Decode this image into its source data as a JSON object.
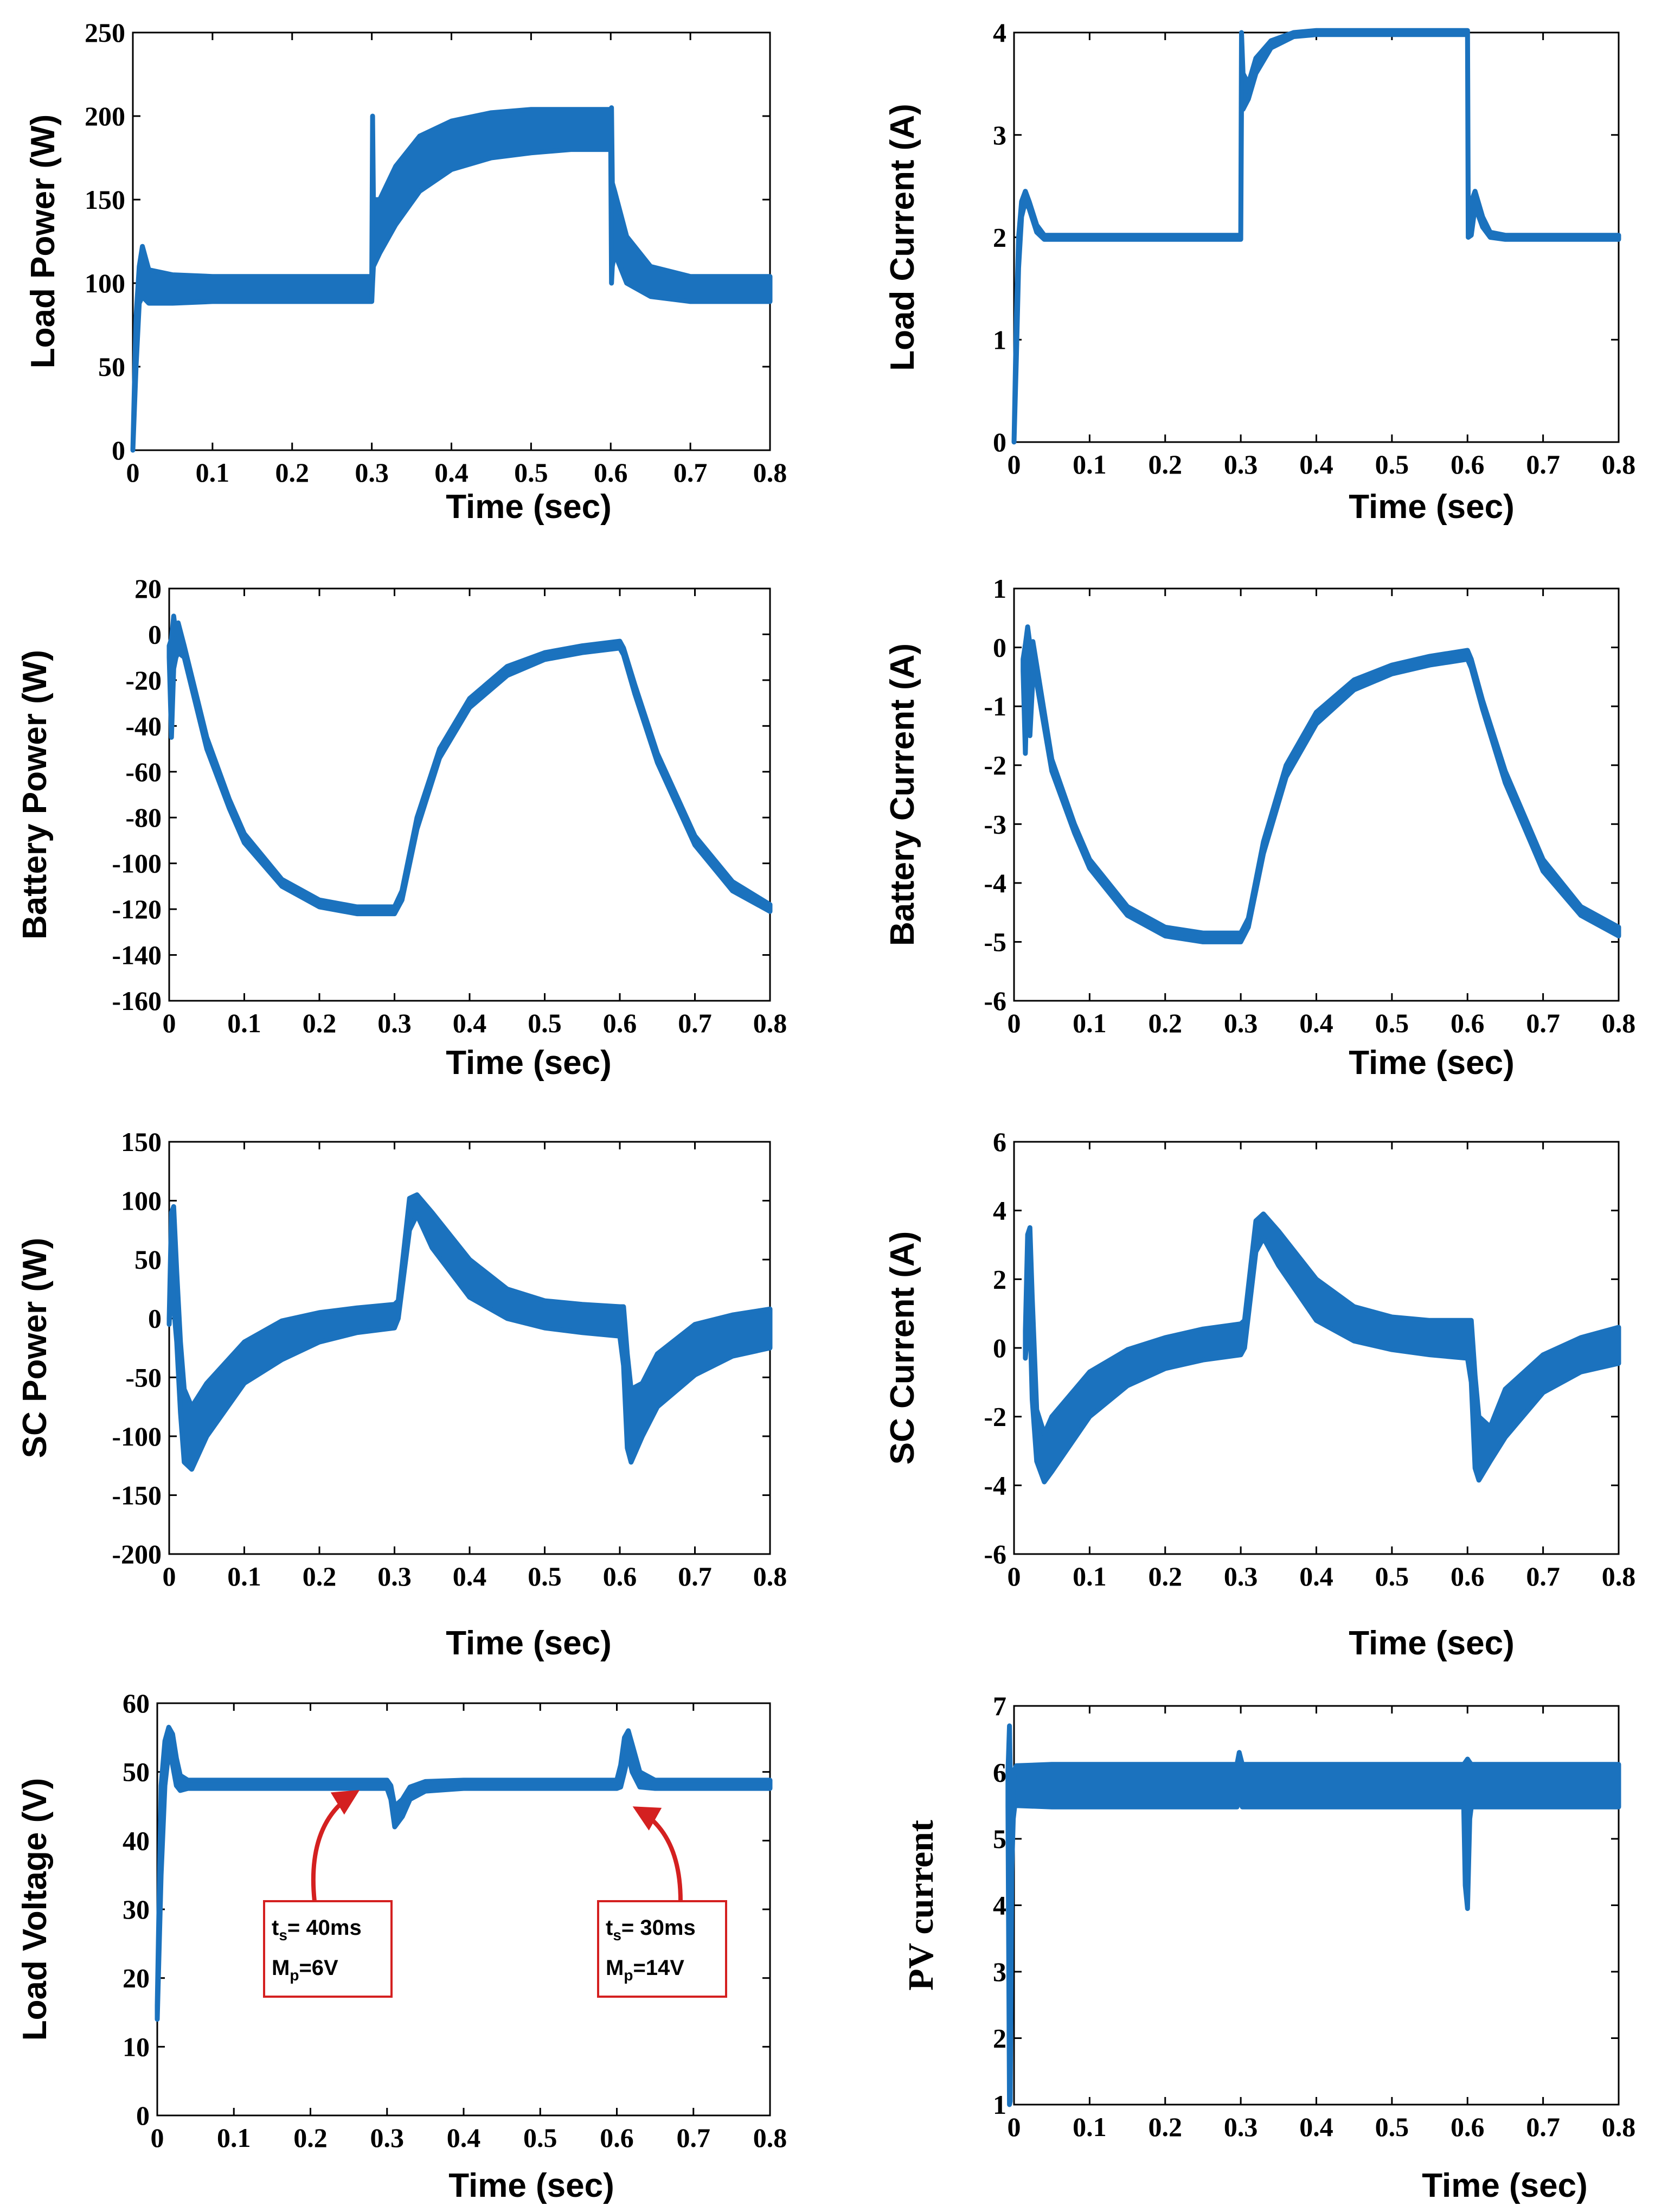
{
  "figure": {
    "series_color": "#1b72be",
    "annotation_color": "#d42020"
  },
  "chart_data": [
    {
      "id": "load-power",
      "type": "line",
      "title": "",
      "xlabel": "Time (sec)",
      "ylabel": "Load Power (W)",
      "xlim": [
        0,
        0.8
      ],
      "ylim": [
        0,
        250
      ],
      "xticks": [
        "0",
        "0.1",
        "0.2",
        "0.3",
        "0.4",
        "0.5",
        "0.6",
        "0.7",
        "0.8"
      ],
      "yticks": [
        "0",
        "50",
        "100",
        "150",
        "200",
        "250"
      ],
      "series": [
        {
          "name": "Load Power",
          "x": [
            0,
            0.004,
            0.008,
            0.012,
            0.02,
            0.05,
            0.1,
            0.2,
            0.3,
            0.301,
            0.302,
            0.31,
            0.33,
            0.36,
            0.4,
            0.45,
            0.5,
            0.55,
            0.6,
            0.601,
            0.602,
            0.605,
            0.62,
            0.65,
            0.7,
            0.75,
            0.8
          ],
          "upper": [
            0,
            80,
            110,
            122,
            108,
            105,
            104,
            104,
            104,
            200,
            150,
            150,
            170,
            188,
            197,
            202,
            204,
            204,
            204,
            205,
            160,
            155,
            128,
            110,
            104,
            104,
            104
          ],
          "lower": [
            0,
            50,
            88,
            92,
            88,
            88,
            89,
            89,
            89,
            100,
            110,
            118,
            135,
            155,
            168,
            175,
            178,
            180,
            180,
            100,
            110,
            118,
            100,
            92,
            89,
            89,
            89
          ]
        }
      ]
    },
    {
      "id": "load-current",
      "type": "line",
      "title": "",
      "xlabel": "Time (sec)",
      "ylabel": "Load Current (A)",
      "xlim": [
        0,
        0.8
      ],
      "ylim": [
        0,
        4
      ],
      "xticks": [
        "0",
        "0.1",
        "0.2",
        "0.3",
        "0.4",
        "0.5",
        "0.6",
        "0.7",
        "0.8"
      ],
      "yticks": [
        "0",
        "1",
        "2",
        "3",
        "4"
      ],
      "series": [
        {
          "name": "Load Current",
          "x": [
            0,
            0.003,
            0.006,
            0.01,
            0.015,
            0.02,
            0.03,
            0.04,
            0.05,
            0.1,
            0.2,
            0.3,
            0.301,
            0.303,
            0.31,
            0.32,
            0.34,
            0.37,
            0.4,
            0.5,
            0.6,
            0.601,
            0.605,
            0.61,
            0.62,
            0.63,
            0.65,
            0.7,
            0.8
          ],
          "upper": [
            0,
            1.2,
            2.0,
            2.35,
            2.45,
            2.35,
            2.12,
            2.02,
            2.02,
            2.02,
            2.02,
            2.02,
            4.0,
            3.6,
            3.5,
            3.75,
            3.92,
            4.0,
            4.02,
            4.02,
            4.02,
            2.3,
            2.35,
            2.45,
            2.2,
            2.05,
            2.02,
            2.02,
            2.02
          ],
          "lower": [
            0,
            0.8,
            1.7,
            2.2,
            2.35,
            2.28,
            2.05,
            1.98,
            1.98,
            1.98,
            1.98,
            1.98,
            3.3,
            3.25,
            3.35,
            3.6,
            3.85,
            3.96,
            3.98,
            3.98,
            3.98,
            2.0,
            2.02,
            2.3,
            2.1,
            2.0,
            1.98,
            1.98,
            1.98
          ]
        }
      ]
    },
    {
      "id": "battery-power",
      "type": "line",
      "title": "",
      "xlabel": "Time (sec)",
      "ylabel": "Battery Power (W)",
      "xlim": [
        0,
        0.8
      ],
      "ylim": [
        -160,
        20
      ],
      "xticks": [
        "0",
        "0.1",
        "0.2",
        "0.3",
        "0.4",
        "0.5",
        "0.6",
        "0.7",
        "0.8"
      ],
      "yticks": [
        "-160",
        "-140",
        "-120",
        "-100",
        "-80",
        "-60",
        "-40",
        "-20",
        "0",
        "20"
      ],
      "series": [
        {
          "name": "Battery Power",
          "x": [
            0,
            0.003,
            0.006,
            0.009,
            0.012,
            0.02,
            0.05,
            0.08,
            0.1,
            0.15,
            0.2,
            0.25,
            0.3,
            0.31,
            0.33,
            0.36,
            0.4,
            0.45,
            0.5,
            0.55,
            0.6,
            0.605,
            0.62,
            0.65,
            0.7,
            0.75,
            0.8
          ],
          "upper": [
            -5,
            -2,
            8,
            0,
            5,
            -5,
            -45,
            -72,
            -87,
            -107,
            -116,
            -119,
            -119,
            -112,
            -80,
            -50,
            -28,
            -14,
            -8,
            -5,
            -3,
            -6,
            -22,
            -52,
            -88,
            -108,
            -118
          ],
          "lower": [
            -10,
            -45,
            -15,
            -10,
            -8,
            -10,
            -50,
            -76,
            -91,
            -110,
            -119,
            -122,
            -122,
            -116,
            -85,
            -54,
            -32,
            -18,
            -11,
            -8,
            -6,
            -9,
            -26,
            -56,
            -92,
            -112,
            -121
          ]
        }
      ]
    },
    {
      "id": "battery-current",
      "type": "line",
      "title": "",
      "xlabel": "Time (sec)",
      "ylabel": "Battery Current (A)",
      "xlim": [
        0,
        0.8
      ],
      "ylim": [
        -6,
        1
      ],
      "xticks": [
        "0",
        "0.1",
        "0.2",
        "0.3",
        "0.4",
        "0.5",
        "0.6",
        "0.7",
        "0.8"
      ],
      "yticks": [
        "-6",
        "-5",
        "-4",
        "-3",
        "-2",
        "-1",
        "0",
        "1"
      ],
      "series": [
        {
          "name": "Battery Current",
          "x": [
            0.012,
            0.015,
            0.018,
            0.021,
            0.025,
            0.03,
            0.05,
            0.08,
            0.1,
            0.15,
            0.2,
            0.25,
            0.3,
            0.31,
            0.33,
            0.36,
            0.4,
            0.45,
            0.5,
            0.55,
            0.6,
            0.605,
            0.62,
            0.65,
            0.7,
            0.75,
            0.8
          ],
          "upper": [
            -0.2,
            0.05,
            0.35,
            0.05,
            0.1,
            -0.3,
            -1.9,
            -3.0,
            -3.6,
            -4.4,
            -4.75,
            -4.85,
            -4.85,
            -4.6,
            -3.3,
            -2.0,
            -1.1,
            -0.55,
            -0.3,
            -0.15,
            -0.05,
            -0.2,
            -0.9,
            -2.1,
            -3.6,
            -4.4,
            -4.75
          ],
          "lower": [
            -0.4,
            -1.8,
            -0.3,
            -1.5,
            -0.5,
            -0.6,
            -2.1,
            -3.15,
            -3.75,
            -4.55,
            -4.9,
            -5.0,
            -5.0,
            -4.75,
            -3.5,
            -2.2,
            -1.3,
            -0.72,
            -0.45,
            -0.3,
            -0.2,
            -0.35,
            -1.05,
            -2.3,
            -3.8,
            -4.55,
            -4.9
          ]
        }
      ]
    },
    {
      "id": "sc-power",
      "type": "line",
      "title": "",
      "xlabel": "Time (sec)",
      "ylabel": "SC Power (W)",
      "xlim": [
        0,
        0.8
      ],
      "ylim": [
        -200,
        150
      ],
      "xticks": [
        "0",
        "0.1",
        "0.2",
        "0.3",
        "0.4",
        "0.5",
        "0.6",
        "0.7",
        "0.8"
      ],
      "yticks": [
        "-200",
        "-150",
        "-100",
        "-50",
        "0",
        "50",
        "100",
        "150"
      ],
      "series": [
        {
          "name": "SC Power",
          "x": [
            0,
            0.003,
            0.006,
            0.01,
            0.015,
            0.02,
            0.03,
            0.05,
            0.1,
            0.15,
            0.2,
            0.25,
            0.3,
            0.305,
            0.32,
            0.33,
            0.35,
            0.4,
            0.45,
            0.5,
            0.55,
            0.6,
            0.605,
            0.61,
            0.615,
            0.63,
            0.65,
            0.7,
            0.75,
            0.8
          ],
          "upper": [
            0,
            90,
            95,
            40,
            -20,
            -60,
            -75,
            -55,
            -20,
            -2,
            5,
            9,
            12,
            15,
            102,
            105,
            90,
            50,
            25,
            15,
            12,
            10,
            10,
            -30,
            -60,
            -55,
            -30,
            -5,
            3,
            8
          ],
          "lower": [
            -5,
            40,
            10,
            -20,
            -80,
            -122,
            -128,
            -100,
            -55,
            -35,
            -20,
            -12,
            -8,
            0,
            75,
            88,
            60,
            18,
            0,
            -8,
            -12,
            -15,
            -40,
            -110,
            -122,
            -100,
            -75,
            -48,
            -32,
            -25
          ]
        }
      ]
    },
    {
      "id": "sc-current",
      "type": "line",
      "title": "",
      "xlabel": "Time (sec)",
      "ylabel": "SC Current (A)",
      "xlim": [
        0,
        0.8
      ],
      "ylim": [
        -6,
        6
      ],
      "xticks": [
        "0",
        "0.1",
        "0.2",
        "0.3",
        "0.4",
        "0.5",
        "0.6",
        "0.7",
        "0.8"
      ],
      "yticks": [
        "-6",
        "-4",
        "-2",
        "0",
        "2",
        "4",
        "6"
      ],
      "series": [
        {
          "name": "SC Current",
          "x": [
            0.015,
            0.018,
            0.021,
            0.024,
            0.03,
            0.04,
            0.05,
            0.1,
            0.15,
            0.2,
            0.25,
            0.3,
            0.305,
            0.32,
            0.33,
            0.35,
            0.4,
            0.45,
            0.5,
            0.55,
            0.6,
            0.605,
            0.61,
            0.615,
            0.63,
            0.65,
            0.7,
            0.75,
            0.8
          ],
          "upper": [
            0.5,
            3.3,
            3.5,
            1.5,
            -1.8,
            -2.5,
            -2.0,
            -0.7,
            -0.05,
            0.3,
            0.55,
            0.7,
            0.8,
            3.7,
            3.9,
            3.4,
            2.0,
            1.2,
            0.9,
            0.8,
            0.8,
            0.8,
            -0.8,
            -2.0,
            -2.3,
            -1.2,
            -0.2,
            0.3,
            0.6
          ],
          "lower": [
            -0.3,
            0.5,
            1.0,
            -1.5,
            -3.3,
            -3.9,
            -3.6,
            -2.0,
            -1.1,
            -0.6,
            -0.35,
            -0.2,
            0.0,
            2.8,
            3.2,
            2.4,
            0.8,
            0.2,
            -0.05,
            -0.2,
            -0.3,
            -1.0,
            -3.5,
            -3.85,
            -3.3,
            -2.6,
            -1.3,
            -0.7,
            -0.45
          ]
        }
      ]
    },
    {
      "id": "load-voltage",
      "type": "line",
      "title": "",
      "xlabel": "Time (sec)",
      "ylabel": "Load Voltage (V)",
      "xlim": [
        0,
        0.8
      ],
      "ylim": [
        0,
        60
      ],
      "xticks": [
        "0",
        "0.1",
        "0.2",
        "0.3",
        "0.4",
        "0.5",
        "0.6",
        "0.7",
        "0.8"
      ],
      "yticks": [
        "0",
        "10",
        "20",
        "30",
        "40",
        "50",
        "60"
      ],
      "series": [
        {
          "name": "Load Voltage",
          "x": [
            0,
            0.005,
            0.01,
            0.015,
            0.02,
            0.025,
            0.03,
            0.04,
            0.1,
            0.2,
            0.3,
            0.305,
            0.31,
            0.32,
            0.33,
            0.35,
            0.4,
            0.5,
            0.6,
            0.605,
            0.61,
            0.615,
            0.62,
            0.63,
            0.65,
            0.7,
            0.8
          ],
          "upper": [
            16,
            48,
            54.5,
            56.5,
            55.5,
            52,
            49.5,
            48.8,
            48.8,
            48.8,
            48.8,
            48,
            45,
            46,
            47.8,
            48.6,
            48.8,
            48.8,
            48.8,
            51,
            55,
            56,
            54,
            50,
            48.8,
            48.8,
            48.8
          ],
          "lower": [
            14,
            35,
            48,
            53,
            51,
            48,
            47.3,
            47.6,
            47.6,
            47.6,
            47.6,
            46,
            42,
            43.5,
            46,
            47.2,
            47.6,
            47.6,
            47.6,
            47.8,
            50,
            52.5,
            50,
            47.8,
            47.6,
            47.6,
            47.6
          ]
        }
      ],
      "annotations": [
        {
          "line1": "t",
          "sub1": "s",
          "rest1": "= 40ms",
          "line2": "M",
          "sub2": "p",
          "rest2": "=6V"
        },
        {
          "line1": "t",
          "sub1": "s",
          "rest1": "= 30ms",
          "line2": "M",
          "sub2": "p",
          "rest2": "=14V"
        }
      ]
    },
    {
      "id": "pv-current",
      "type": "line",
      "title": "",
      "xlabel": "Time (sec)",
      "ylabel": "PV current",
      "xlim": [
        0,
        0.8
      ],
      "ylim": [
        1,
        7
      ],
      "xticks": [
        "0",
        "0.1",
        "0.2",
        "0.3",
        "0.4",
        "0.5",
        "0.6",
        "0.7",
        "0.8"
      ],
      "yticks": [
        "1",
        "2",
        "3",
        "4",
        "5",
        "6",
        "7"
      ],
      "series": [
        {
          "name": "PV current",
          "x": [
            -0.008,
            -0.006,
            -0.005,
            -0.003,
            -0.001,
            0.001,
            0.003,
            0.05,
            0.1,
            0.2,
            0.295,
            0.298,
            0.302,
            0.4,
            0.5,
            0.595,
            0.597,
            0.6,
            0.603,
            0.605,
            0.7,
            0.8
          ],
          "upper": [
            6.0,
            6.7,
            6.0,
            5.0,
            5.8,
            6.05,
            6.1,
            6.12,
            6.12,
            6.12,
            6.12,
            6.3,
            6.12,
            6.12,
            6.12,
            6.12,
            6.15,
            6.2,
            6.15,
            6.12,
            6.12,
            6.12
          ],
          "lower": [
            5.5,
            1.0,
            1.05,
            4.5,
            5.3,
            5.5,
            5.5,
            5.48,
            5.48,
            5.48,
            5.48,
            5.6,
            5.48,
            5.48,
            5.48,
            5.48,
            4.3,
            3.95,
            5.3,
            5.48,
            5.48,
            5.48
          ]
        }
      ]
    }
  ]
}
